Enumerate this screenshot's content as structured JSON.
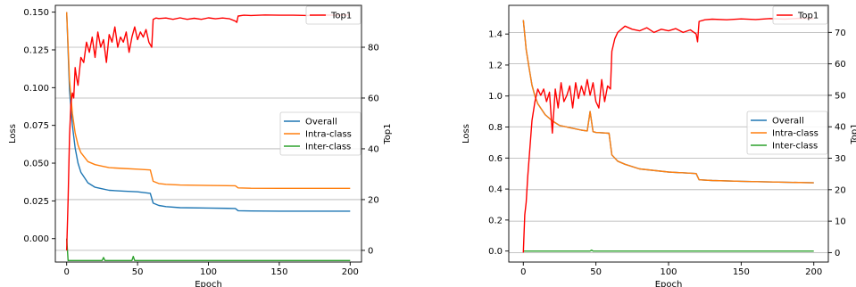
{
  "chart_data": [
    {
      "type": "line",
      "xlabel": "Epoch",
      "ylabel": "Loss",
      "y2label": "Top1",
      "xlim": [
        -8,
        208
      ],
      "ylim": [
        -0.0155,
        0.1545
      ],
      "y2lim": [
        -4.6,
        96.5
      ],
      "xticks": [
        "0",
        "50",
        "100",
        "150",
        "200"
      ],
      "yticks": [
        "0.000",
        "0.025",
        "0.050",
        "0.075",
        "0.100",
        "0.125",
        "0.150"
      ],
      "y2ticks": [
        "0",
        "20",
        "40",
        "60",
        "80"
      ],
      "grid": "horizontal gridlines on secondary (Top1) axis",
      "legend_left": {
        "position": "center-right",
        "entries": [
          "Overall",
          "Intra-class",
          "Inter-class"
        ]
      },
      "legend_right": {
        "position": "top-right",
        "entries": [
          "Top1"
        ]
      },
      "series": [
        {
          "name": "Overall",
          "axis": "left",
          "color": "#1f77b4",
          "x": [
            0,
            2,
            4,
            6,
            8,
            10,
            15,
            20,
            25,
            30,
            40,
            50,
            59,
            61,
            65,
            70,
            80,
            100,
            119,
            121,
            130,
            150,
            200
          ],
          "values": [
            0.15,
            0.098,
            0.075,
            0.06,
            0.05,
            0.044,
            0.037,
            0.034,
            0.033,
            0.032,
            0.0315,
            0.031,
            0.03,
            0.0235,
            0.022,
            0.0212,
            0.0205,
            0.0203,
            0.02,
            0.0185,
            0.0183,
            0.0182,
            0.0182
          ]
        },
        {
          "name": "Intra-class",
          "axis": "left",
          "color": "#ff7f0e",
          "x": [
            0,
            2,
            4,
            6,
            8,
            10,
            15,
            20,
            25,
            30,
            40,
            50,
            59,
            61,
            65,
            70,
            80,
            100,
            119,
            121,
            130,
            150,
            200
          ],
          "values": [
            0.15,
            0.105,
            0.083,
            0.07,
            0.062,
            0.057,
            0.051,
            0.049,
            0.048,
            0.047,
            0.0465,
            0.046,
            0.0455,
            0.038,
            0.0365,
            0.036,
            0.0355,
            0.0352,
            0.035,
            0.0336,
            0.0334,
            0.0333,
            0.0333
          ]
        },
        {
          "name": "Inter-class",
          "axis": "left",
          "color": "#2ca02c",
          "x": [
            0,
            1,
            2,
            25,
            26,
            27,
            46,
            47,
            48,
            200
          ],
          "values": [
            0.0,
            -0.0145,
            -0.0145,
            -0.0145,
            -0.0125,
            -0.0145,
            -0.0145,
            -0.0118,
            -0.0145,
            -0.0145
          ]
        },
        {
          "name": "Top1",
          "axis": "right",
          "color": "#ff0000",
          "x": [
            0,
            1,
            2,
            3,
            4,
            5,
            6,
            7,
            8,
            10,
            12,
            14,
            16,
            18,
            20,
            22,
            24,
            26,
            28,
            30,
            32,
            34,
            36,
            38,
            40,
            42,
            44,
            46,
            48,
            50,
            52,
            54,
            56,
            58,
            60,
            61,
            63,
            65,
            70,
            75,
            80,
            85,
            90,
            95,
            100,
            105,
            110,
            115,
            119,
            120,
            121,
            125,
            130,
            140,
            150,
            160,
            170,
            180,
            190,
            200
          ],
          "values": [
            0,
            20,
            45,
            58,
            62,
            60,
            72,
            68,
            65,
            76,
            74,
            82,
            78,
            84,
            76,
            86,
            80,
            83,
            74,
            85,
            82,
            88,
            80,
            84,
            82,
            86,
            78,
            84,
            88,
            83,
            86,
            84,
            87,
            82,
            80,
            91,
            91.5,
            91.3,
            91.5,
            91,
            91.6,
            91,
            91.4,
            91,
            91.6,
            91.2,
            91.5,
            91.2,
            90.3,
            89.8,
            92.3,
            92.6,
            92.5,
            92.7,
            92.6,
            92.6,
            92.5,
            92.7,
            92.6,
            92.7
          ]
        }
      ]
    },
    {
      "type": "line",
      "xlabel": "Epoch",
      "ylabel": "Loss",
      "y2label": "Top1",
      "xlim": [
        -10,
        210
      ],
      "ylim": [
        -0.071,
        1.585
      ],
      "y2lim": [
        -3.0,
        78.6
      ],
      "xticks": [
        "0",
        "50",
        "100",
        "150",
        "200"
      ],
      "yticks": [
        "0.0",
        "0.2",
        "0.4",
        "0.6",
        "0.8",
        "1.0",
        "1.2",
        "1.4"
      ],
      "y2ticks": [
        "0",
        "10",
        "20",
        "30",
        "40",
        "50",
        "60",
        "70"
      ],
      "grid": "horizontal gridlines on secondary (Top1) axis",
      "legend_left": {
        "position": "center-right",
        "entries": [
          "Overall",
          "Intra-class",
          "Inter-class"
        ]
      },
      "legend_right": {
        "position": "top-right",
        "entries": [
          "Top1"
        ]
      },
      "series": [
        {
          "name": "Overall",
          "axis": "left",
          "color": "#1f77b4",
          "x": [
            0,
            2,
            4,
            6,
            8,
            10,
            15,
            20,
            25,
            30,
            40,
            44,
            46,
            48,
            50,
            59,
            61,
            65,
            70,
            80,
            100,
            119,
            121,
            130,
            150,
            200
          ],
          "values": [
            1.49,
            1.3,
            1.18,
            1.07,
            1.0,
            0.95,
            0.88,
            0.84,
            0.81,
            0.8,
            0.78,
            0.775,
            0.9,
            0.77,
            0.765,
            0.76,
            0.62,
            0.58,
            0.56,
            0.53,
            0.51,
            0.5,
            0.46,
            0.455,
            0.45,
            0.44
          ]
        },
        {
          "name": "Intra-class",
          "axis": "left",
          "color": "#ff7f0e",
          "x": [
            0,
            2,
            4,
            6,
            8,
            10,
            15,
            20,
            25,
            30,
            40,
            44,
            46,
            48,
            50,
            59,
            61,
            65,
            70,
            80,
            100,
            119,
            121,
            130,
            150,
            200
          ],
          "values": [
            1.49,
            1.3,
            1.18,
            1.07,
            1.0,
            0.95,
            0.88,
            0.84,
            0.81,
            0.8,
            0.78,
            0.775,
            0.9,
            0.77,
            0.765,
            0.76,
            0.62,
            0.58,
            0.56,
            0.53,
            0.51,
            0.5,
            0.46,
            0.455,
            0.45,
            0.44
          ]
        },
        {
          "name": "Inter-class",
          "axis": "left",
          "color": "#2ca02c",
          "x": [
            0,
            46,
            47,
            48,
            200
          ],
          "values": [
            0.0,
            0.0,
            0.006,
            0.0,
            0.0
          ]
        },
        {
          "name": "Top1",
          "axis": "right",
          "color": "#ff0000",
          "x": [
            0,
            1,
            2,
            3,
            4,
            5,
            6,
            8,
            10,
            12,
            14,
            16,
            18,
            20,
            22,
            24,
            26,
            28,
            30,
            32,
            34,
            36,
            38,
            40,
            42,
            44,
            46,
            48,
            50,
            52,
            54,
            56,
            58,
            60,
            61,
            63,
            65,
            70,
            75,
            80,
            85,
            90,
            95,
            100,
            105,
            110,
            115,
            119,
            120,
            121,
            125,
            130,
            140,
            150,
            160,
            170,
            180,
            190,
            200
          ],
          "values": [
            0,
            12,
            16,
            24,
            30,
            36,
            42,
            48,
            52,
            50,
            52,
            48,
            51,
            38,
            52,
            46,
            54,
            48,
            50,
            53,
            46,
            54,
            49,
            53,
            50,
            55,
            50,
            54,
            48,
            46,
            55,
            48,
            53,
            52,
            64,
            68,
            70,
            72,
            71,
            70.5,
            71.5,
            70,
            71,
            70.5,
            71.2,
            70,
            70.8,
            69.5,
            67,
            73.5,
            74,
            74.2,
            74,
            74.3,
            74.1,
            74.4,
            74.2,
            74.5,
            74.4
          ]
        }
      ]
    }
  ]
}
